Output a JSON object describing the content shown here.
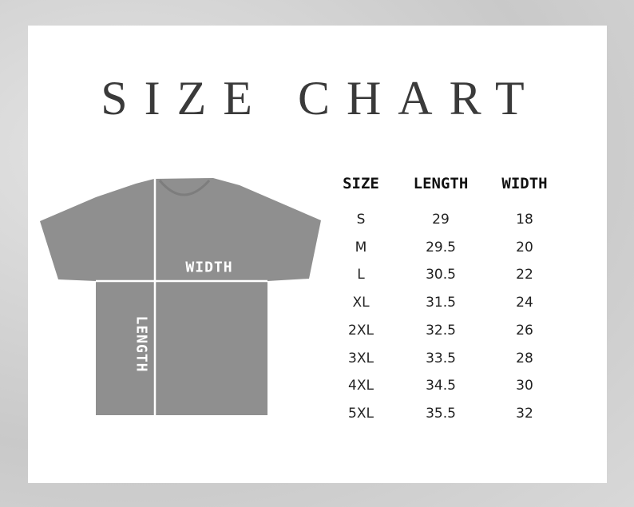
{
  "title": "SIZE CHART",
  "diagram": {
    "width_label": "WIDTH",
    "length_label": "LENGTH",
    "shirt_color": "#8f8f8f"
  },
  "table": {
    "headers": [
      "SIZE",
      "LENGTH",
      "WIDTH"
    ],
    "rows": [
      [
        "S",
        "29",
        "18"
      ],
      [
        "M",
        "29.5",
        "20"
      ],
      [
        "L",
        "30.5",
        "22"
      ],
      [
        "XL",
        "31.5",
        "24"
      ],
      [
        "2XL",
        "32.5",
        "26"
      ],
      [
        "3XL",
        "33.5",
        "28"
      ],
      [
        "4XL",
        "34.5",
        "30"
      ],
      [
        "5XL",
        "35.5",
        "32"
      ]
    ]
  }
}
